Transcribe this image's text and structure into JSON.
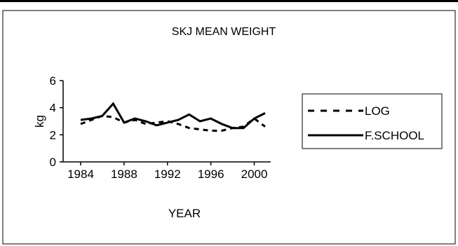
{
  "chart_data": {
    "type": "line",
    "title": "SKJ MEAN WEIGHT",
    "xlabel": "YEAR",
    "ylabel": "kg",
    "xlim": [
      1984,
      2001
    ],
    "ylim": [
      0,
      6
    ],
    "x_ticks": [
      "1984",
      "1988",
      "1992",
      "1996",
      "2000"
    ],
    "y_ticks": [
      "0",
      "2",
      "4",
      "6"
    ],
    "grid": false,
    "legend_position": "right",
    "x": [
      1984,
      1985,
      1986,
      1987,
      1988,
      1989,
      1990,
      1991,
      1992,
      1993,
      1994,
      1995,
      1996,
      1997,
      1998,
      1999,
      2000,
      2001
    ],
    "series": [
      {
        "name": "LOG",
        "style": "dashed",
        "values": [
          2.8,
          3.1,
          3.4,
          3.3,
          2.9,
          3.1,
          2.8,
          2.9,
          3.0,
          2.8,
          2.5,
          2.4,
          2.3,
          2.3,
          2.5,
          2.6,
          3.2,
          2.6
        ]
      },
      {
        "name": "F.SCHOOL",
        "style": "solid",
        "values": [
          3.1,
          3.2,
          3.4,
          4.3,
          2.9,
          3.2,
          3.0,
          2.7,
          2.9,
          3.1,
          3.5,
          3.0,
          3.2,
          2.8,
          2.5,
          2.5,
          3.2,
          3.6
        ]
      }
    ],
    "colors": {
      "line": "#000000",
      "background": "#ffffff"
    }
  }
}
